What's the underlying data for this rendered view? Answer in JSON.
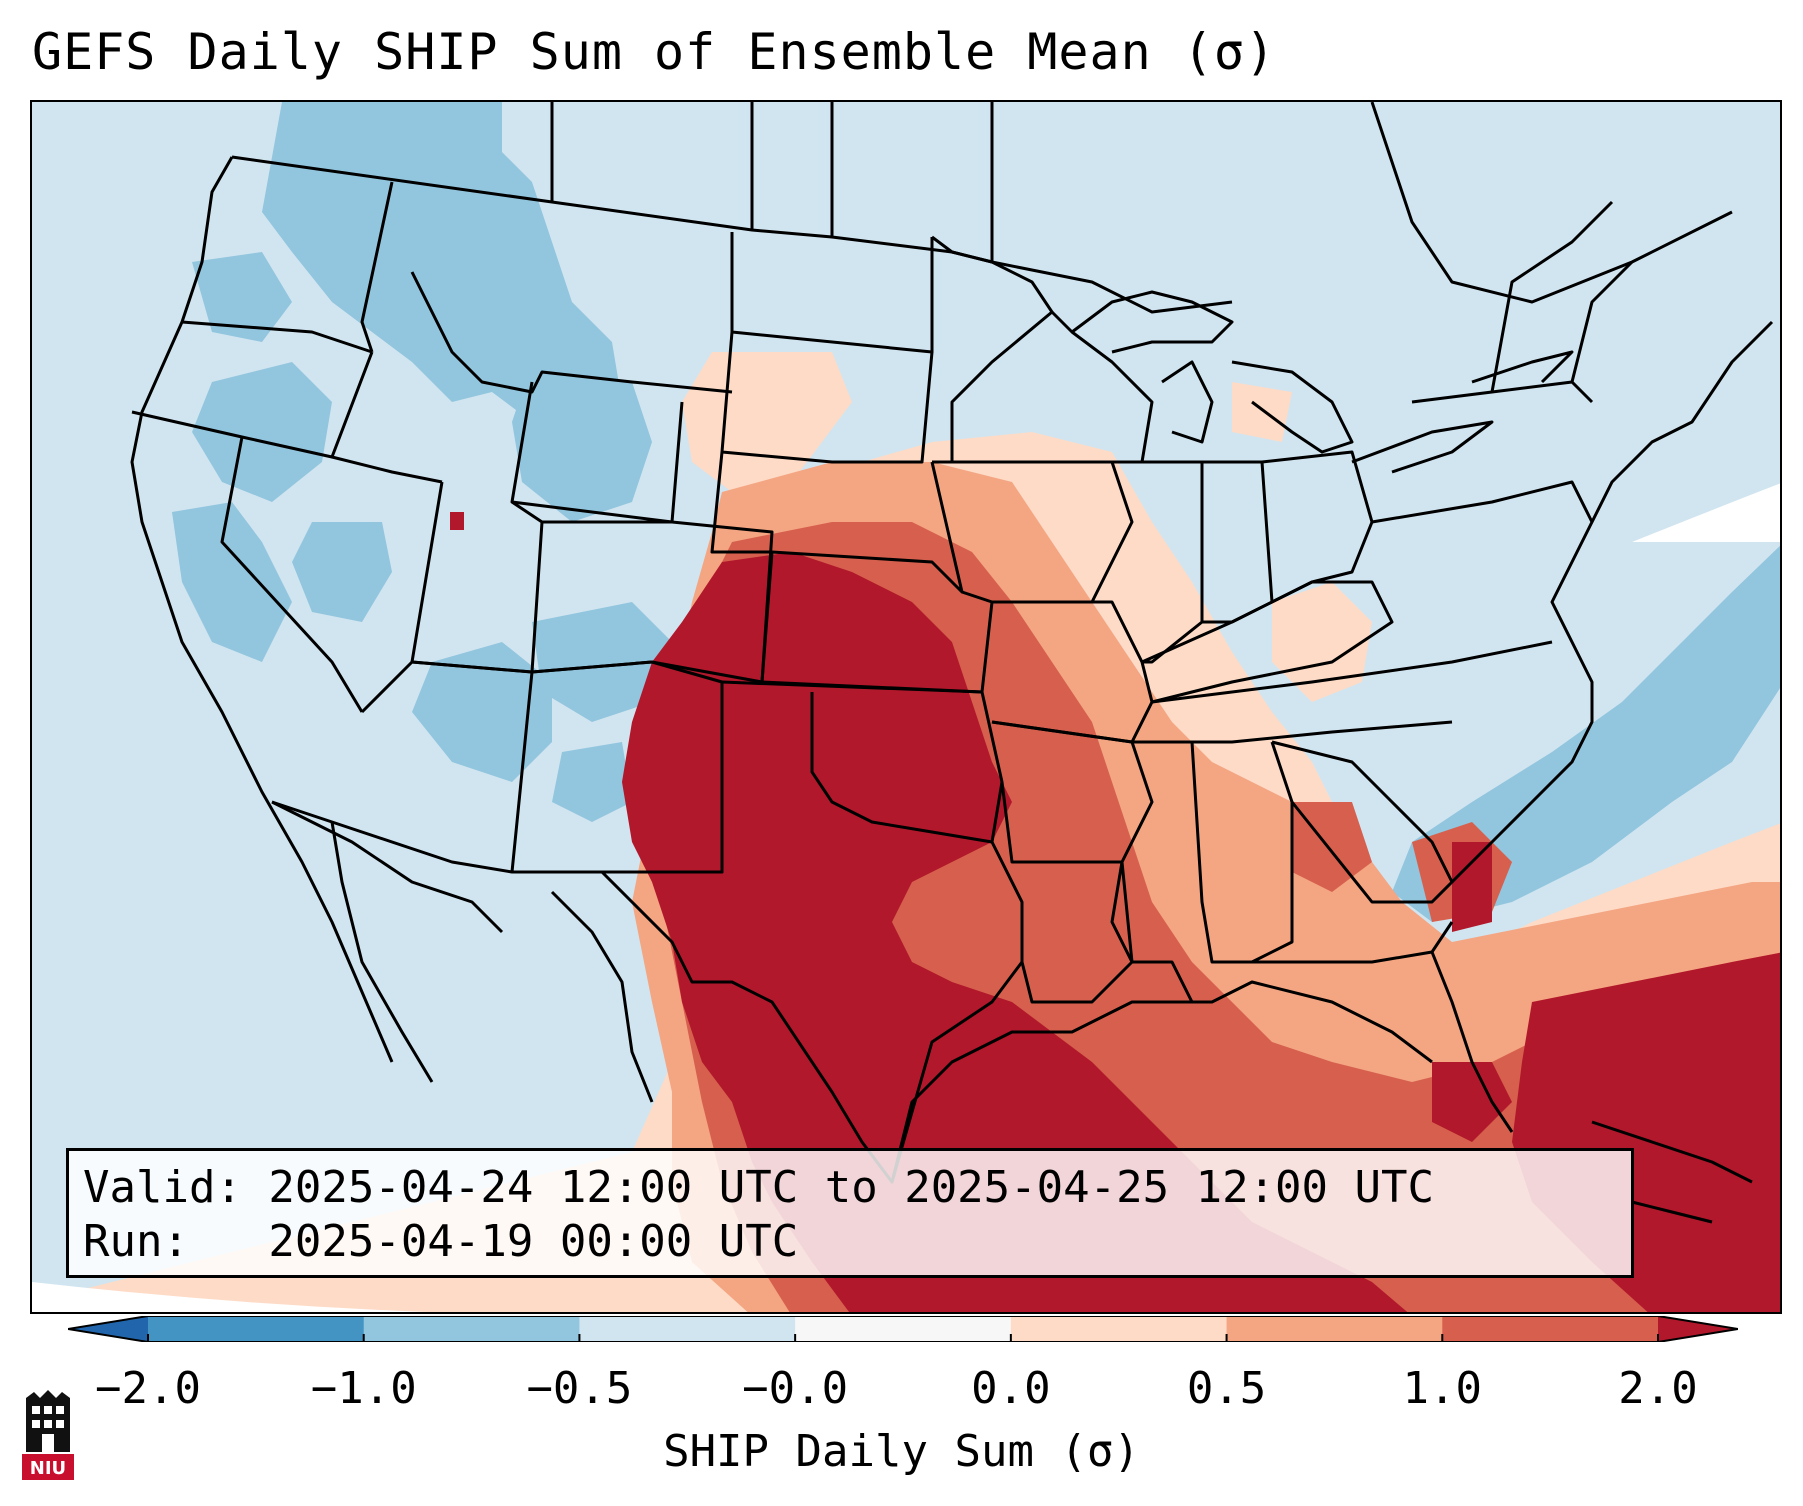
{
  "title": "GEFS Daily SHIP Sum of Ensemble Mean (σ)",
  "info": {
    "valid_line": "Valid: 2025-04-24 12:00 UTC to 2025-04-25 12:00 UTC",
    "run_line": "Run:   2025-04-19 00:00 UTC"
  },
  "colorbar": {
    "label": "SHIP Daily Sum (σ)",
    "ticks": [
      "−2.0",
      "−1.0",
      "−0.5",
      "−0.0",
      "0.0",
      "0.5",
      "1.0",
      "2.0"
    ],
    "colors": [
      "#4393c3",
      "#92c5de",
      "#d1e5f0",
      "#f7f7f7",
      "#fddbc7",
      "#f4a582",
      "#d6604d",
      "#b2182b"
    ]
  },
  "logo": {
    "text": "NIU"
  },
  "map": {
    "region": "Contiguous United States",
    "features": [
      "state-borders",
      "coastlines",
      "great-lakes"
    ],
    "values_field": "SHIP daily sum anomaly"
  }
}
